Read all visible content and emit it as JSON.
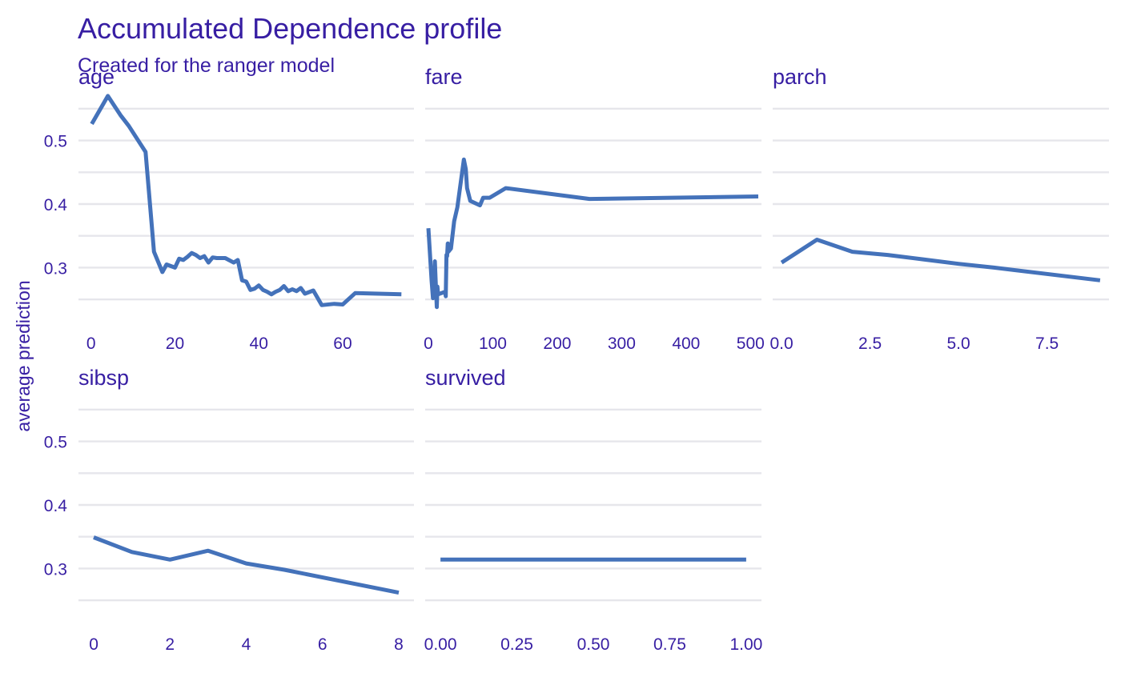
{
  "chart_data": {
    "type": "line",
    "title": "Accumulated Dependence profile",
    "subtitle": "Created for the ranger model",
    "ylabel": "average prediction",
    "ylim": [
      0.22,
      0.58
    ],
    "yticks": [
      0.3,
      0.4,
      0.5
    ],
    "y_gridlines": [
      0.25,
      0.3,
      0.35,
      0.4,
      0.45,
      0.5,
      0.55
    ],
    "grid": true,
    "legend": "none",
    "line_color": "#4472BA",
    "text_color": "#371EA3",
    "grid_color": "#E6E6EB",
    "panels": [
      {
        "name": "age",
        "xlim": [
          -3,
          77
        ],
        "xticks": [
          "0",
          "20",
          "40",
          "60"
        ],
        "xtick_values": [
          0,
          20,
          40,
          60
        ],
        "x": [
          0.17,
          4,
          7,
          9,
          13,
          15,
          17,
          18,
          20,
          21,
          22,
          23,
          24,
          25,
          26,
          27,
          28,
          29,
          30,
          32,
          34,
          35,
          36,
          37,
          38,
          39,
          40,
          41,
          42,
          43,
          44,
          45,
          46,
          47,
          48,
          49,
          50,
          51,
          53,
          55,
          58,
          60,
          63,
          74
        ],
        "values": [
          0.526,
          0.57,
          0.54,
          0.523,
          0.482,
          0.325,
          0.293,
          0.305,
          0.3,
          0.314,
          0.312,
          0.317,
          0.323,
          0.32,
          0.315,
          0.318,
          0.308,
          0.316,
          0.315,
          0.315,
          0.308,
          0.312,
          0.28,
          0.278,
          0.265,
          0.267,
          0.272,
          0.265,
          0.262,
          0.258,
          0.262,
          0.265,
          0.271,
          0.263,
          0.266,
          0.263,
          0.268,
          0.259,
          0.264,
          0.241,
          0.243,
          0.242,
          0.26,
          0.258
        ]
      },
      {
        "name": "fare",
        "xlim": [
          -5,
          517
        ],
        "xticks": [
          "0",
          "100",
          "200",
          "300",
          "400",
          "500"
        ],
        "xtick_values": [
          0,
          100,
          200,
          300,
          400,
          500
        ],
        "x": [
          0,
          5,
          7,
          8,
          9,
          10,
          11,
          13,
          14,
          15,
          26,
          27,
          28,
          29,
          30,
          31,
          35,
          40,
          45,
          55,
          58,
          60,
          65,
          80,
          85,
          95,
          120,
          250,
          512
        ],
        "values": [
          0.362,
          0.28,
          0.252,
          0.295,
          0.265,
          0.31,
          0.285,
          0.238,
          0.27,
          0.258,
          0.262,
          0.255,
          0.32,
          0.318,
          0.338,
          0.325,
          0.33,
          0.373,
          0.395,
          0.47,
          0.455,
          0.425,
          0.405,
          0.398,
          0.41,
          0.41,
          0.425,
          0.408,
          0.412
        ]
      },
      {
        "name": "parch",
        "xlim": [
          -0.25,
          9.25
        ],
        "xticks": [
          "0.0",
          "2.5",
          "5.0",
          "7.5"
        ],
        "xtick_values": [
          0,
          2.5,
          5,
          7.5
        ],
        "x": [
          0,
          1,
          2,
          3,
          4,
          5,
          6,
          9
        ],
        "values": [
          0.308,
          0.344,
          0.325,
          0.32,
          0.313,
          0.306,
          0.3,
          0.28
        ]
      },
      {
        "name": "sibsp",
        "xlim": [
          -0.4,
          8.4
        ],
        "xticks": [
          "0",
          "2",
          "4",
          "6",
          "8"
        ],
        "xtick_values": [
          0,
          2,
          4,
          6,
          8
        ],
        "x": [
          0,
          1,
          2,
          3,
          4,
          5,
          8
        ],
        "values": [
          0.349,
          0.326,
          0.314,
          0.328,
          0.308,
          0.298,
          0.262
        ]
      },
      {
        "name": "survived",
        "xlim": [
          -0.05,
          1.05
        ],
        "xticks": [
          "0.00",
          "0.25",
          "0.50",
          "0.75",
          "1.00"
        ],
        "xtick_values": [
          0,
          0.25,
          0.5,
          0.75,
          1
        ],
        "x": [
          0,
          1
        ],
        "values": [
          0.314,
          0.314
        ]
      }
    ]
  }
}
